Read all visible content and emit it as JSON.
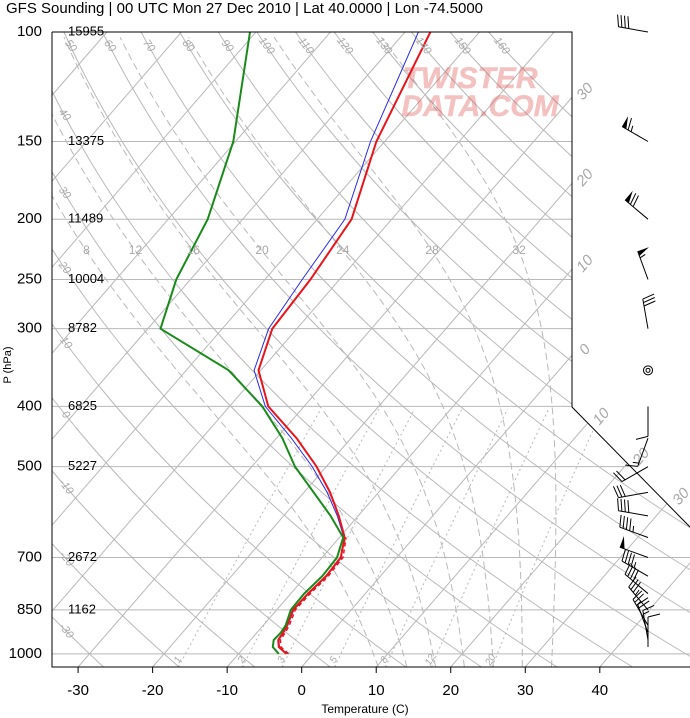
{
  "chart_data": {
    "type": "skewt",
    "title": "GFS Sounding | 00 UTC Mon 27 Dec 2010 | Lat 40.0000 | Lon -74.5000",
    "x_label": "Temperature (C)",
    "y_label": "P (hPa)",
    "watermark": [
      "TWISTER",
      "DATA.COM"
    ],
    "log_y": true,
    "grid": true,
    "xlim": [
      -33.5,
      52.1
    ],
    "ylim": [
      1050,
      100
    ],
    "xticks": [
      -30,
      -20,
      -10,
      0,
      10,
      20,
      30,
      40
    ],
    "yticks": [
      100,
      150,
      200,
      250,
      300,
      400,
      500,
      700,
      850,
      1000
    ],
    "heights": [
      15955,
      13375,
      11489,
      10004,
      8782,
      6825,
      5227,
      2672,
      1162,
      null
    ],
    "pressure": [
      1000,
      975,
      950,
      925,
      900,
      850,
      800,
      750,
      700,
      650,
      600,
      550,
      500,
      450,
      400,
      350,
      300,
      250,
      200,
      150,
      100
    ],
    "series": [
      {
        "color": "#2a2ae8",
        "values": [
          -3.5,
          -5.3,
          -6.2,
          -6.4,
          -6.7,
          -7.7,
          -7.6,
          -7.2,
          -7.4,
          -9.4,
          -12.8,
          -16.9,
          -21.9,
          -28.0,
          -35.2,
          -40.9,
          -43.8,
          -45.0,
          -46.3,
          -51.9,
          -58.2
        ]
      },
      {
        "color": "#e8141c",
        "values": [
          -3.6,
          -5.4,
          -6.3,
          -6.5,
          -6.8,
          -7.8,
          -7.7,
          -7.3,
          -7.5,
          -9.3,
          -12.6,
          -16.5,
          -21.3,
          -27.3,
          -34.8,
          -40.3,
          -43.3,
          -43.9,
          -45.4,
          -51.1,
          -56.6
        ]
      },
      {
        "color": "#e8141c",
        "dashed": true,
        "values": [
          -3.3,
          -5.1,
          -6.0,
          -6.2,
          -6.5,
          -7.5,
          -7.4,
          -7.0,
          -7.2,
          -9.1,
          null,
          null,
          null,
          null,
          null,
          null,
          null,
          null,
          null,
          null,
          null
        ]
      },
      {
        "color": "#1a8a1a",
        "values": [
          -4.6,
          -6.2,
          -6.9,
          -6.8,
          -7.0,
          -8.1,
          -8.2,
          -7.8,
          -8.0,
          -9.5,
          -13.7,
          -18.7,
          -24.2,
          -29.2,
          -35.6,
          -44.3,
          -58.3,
          -61.9,
          -64.7,
          -70.3,
          -80.8
        ]
      }
    ],
    "isotherms": [
      -110,
      -100,
      -90,
      -80,
      -70,
      -60,
      -50,
      -40,
      -30,
      -20,
      -10,
      0,
      10,
      20,
      30,
      40
    ],
    "isotherm_labels": [
      {
        "value": -30,
        "label": "30"
      },
      {
        "value": -20,
        "label": "20"
      },
      {
        "value": -10,
        "label": "10"
      },
      {
        "value": 0,
        "label": "0"
      },
      {
        "value": 10,
        "label": "10"
      },
      {
        "value": 20,
        "label": "20"
      },
      {
        "value": 30,
        "label": "30"
      }
    ],
    "dry_adiabats": [
      -30,
      -20,
      -10,
      0,
      10,
      20,
      30,
      40,
      50,
      60,
      70,
      80,
      90,
      100,
      110,
      120,
      130,
      140,
      150,
      160
    ],
    "moist_adiabats": [
      8,
      12,
      16,
      20,
      24,
      28,
      32
    ],
    "mixing_ratios": [
      1,
      2,
      3,
      5,
      8,
      12,
      20
    ],
    "winds": {
      "pressure": [
        100,
        150,
        200,
        250,
        300,
        350,
        400,
        450,
        500,
        550,
        600,
        650,
        700,
        750,
        800,
        850,
        900,
        925,
        950,
        975
      ],
      "direction": [
        280,
        300,
        310,
        340,
        350,
        0,
        180,
        200,
        240,
        260,
        280,
        290,
        290,
        300,
        310,
        320,
        330,
        340,
        350,
        360
      ],
      "speed": [
        40,
        65,
        70,
        55,
        30,
        0,
        10,
        15,
        20,
        30,
        40,
        45,
        50,
        45,
        40,
        35,
        25,
        20,
        15,
        10
      ]
    }
  }
}
